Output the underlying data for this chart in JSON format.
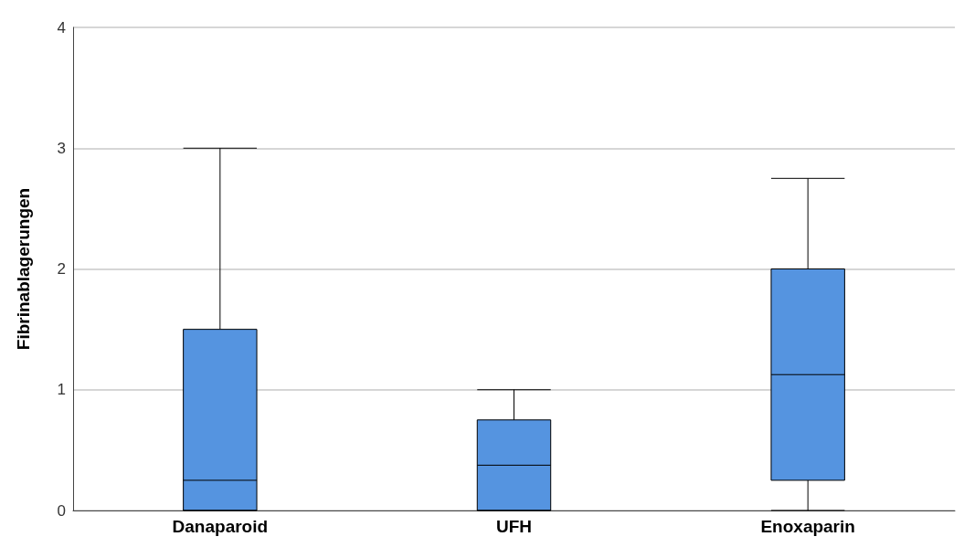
{
  "chart_data": {
    "type": "box",
    "ylabel": "Fibrinablagerungen",
    "categories": [
      "Danaparoid",
      "UFH",
      "Enoxaparin"
    ],
    "boxes": [
      {
        "low": 0,
        "q1": 0,
        "median": 0.25,
        "q3": 1.5,
        "high": 3
      },
      {
        "low": 0,
        "q1": 0,
        "median": 0.375,
        "q3": 0.75,
        "high": 1
      },
      {
        "low": 0,
        "q1": 0.25,
        "median": 1.125,
        "q3": 2,
        "high": 2.75
      }
    ],
    "color": "#5594e0",
    "ylim": [
      0,
      4
    ],
    "yticks": [
      0,
      1,
      2,
      3,
      4
    ],
    "grid": "y"
  }
}
